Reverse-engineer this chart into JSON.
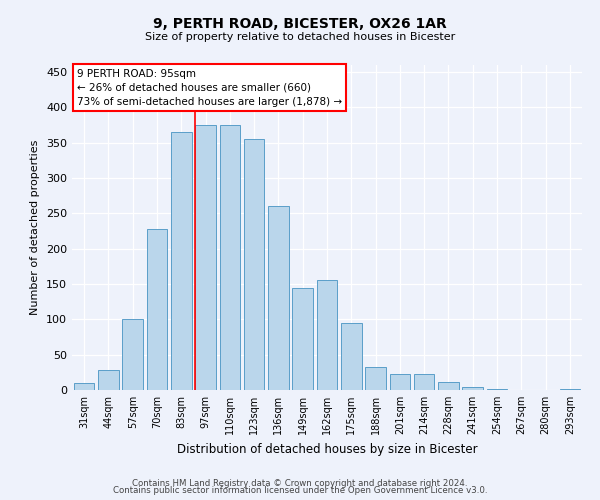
{
  "title1": "9, PERTH ROAD, BICESTER, OX26 1AR",
  "title2": "Size of property relative to detached houses in Bicester",
  "xlabel": "Distribution of detached houses by size in Bicester",
  "ylabel": "Number of detached properties",
  "categories": [
    "31sqm",
    "44sqm",
    "57sqm",
    "70sqm",
    "83sqm",
    "97sqm",
    "110sqm",
    "123sqm",
    "136sqm",
    "149sqm",
    "162sqm",
    "175sqm",
    "188sqm",
    "201sqm",
    "214sqm",
    "228sqm",
    "241sqm",
    "254sqm",
    "267sqm",
    "280sqm",
    "293sqm"
  ],
  "values": [
    10,
    28,
    100,
    228,
    365,
    375,
    375,
    355,
    260,
    145,
    155,
    95,
    33,
    22,
    22,
    11,
    4,
    1,
    0,
    0,
    1
  ],
  "bar_color": "#bad6eb",
  "bar_edge_color": "#5a9ec9",
  "property_bin_index": 5,
  "annotation_text": "9 PERTH ROAD: 95sqm\n← 26% of detached houses are smaller (660)\n73% of semi-detached houses are larger (1,878) →",
  "vline_color": "red",
  "annotation_box_color": "white",
  "annotation_box_edge_color": "red",
  "footer1": "Contains HM Land Registry data © Crown copyright and database right 2024.",
  "footer2": "Contains public sector information licensed under the Open Government Licence v3.0.",
  "ylim": [
    0,
    460
  ],
  "background_color": "#eef2fb",
  "grid_color": "white",
  "yticks": [
    0,
    50,
    100,
    150,
    200,
    250,
    300,
    350,
    400,
    450
  ]
}
